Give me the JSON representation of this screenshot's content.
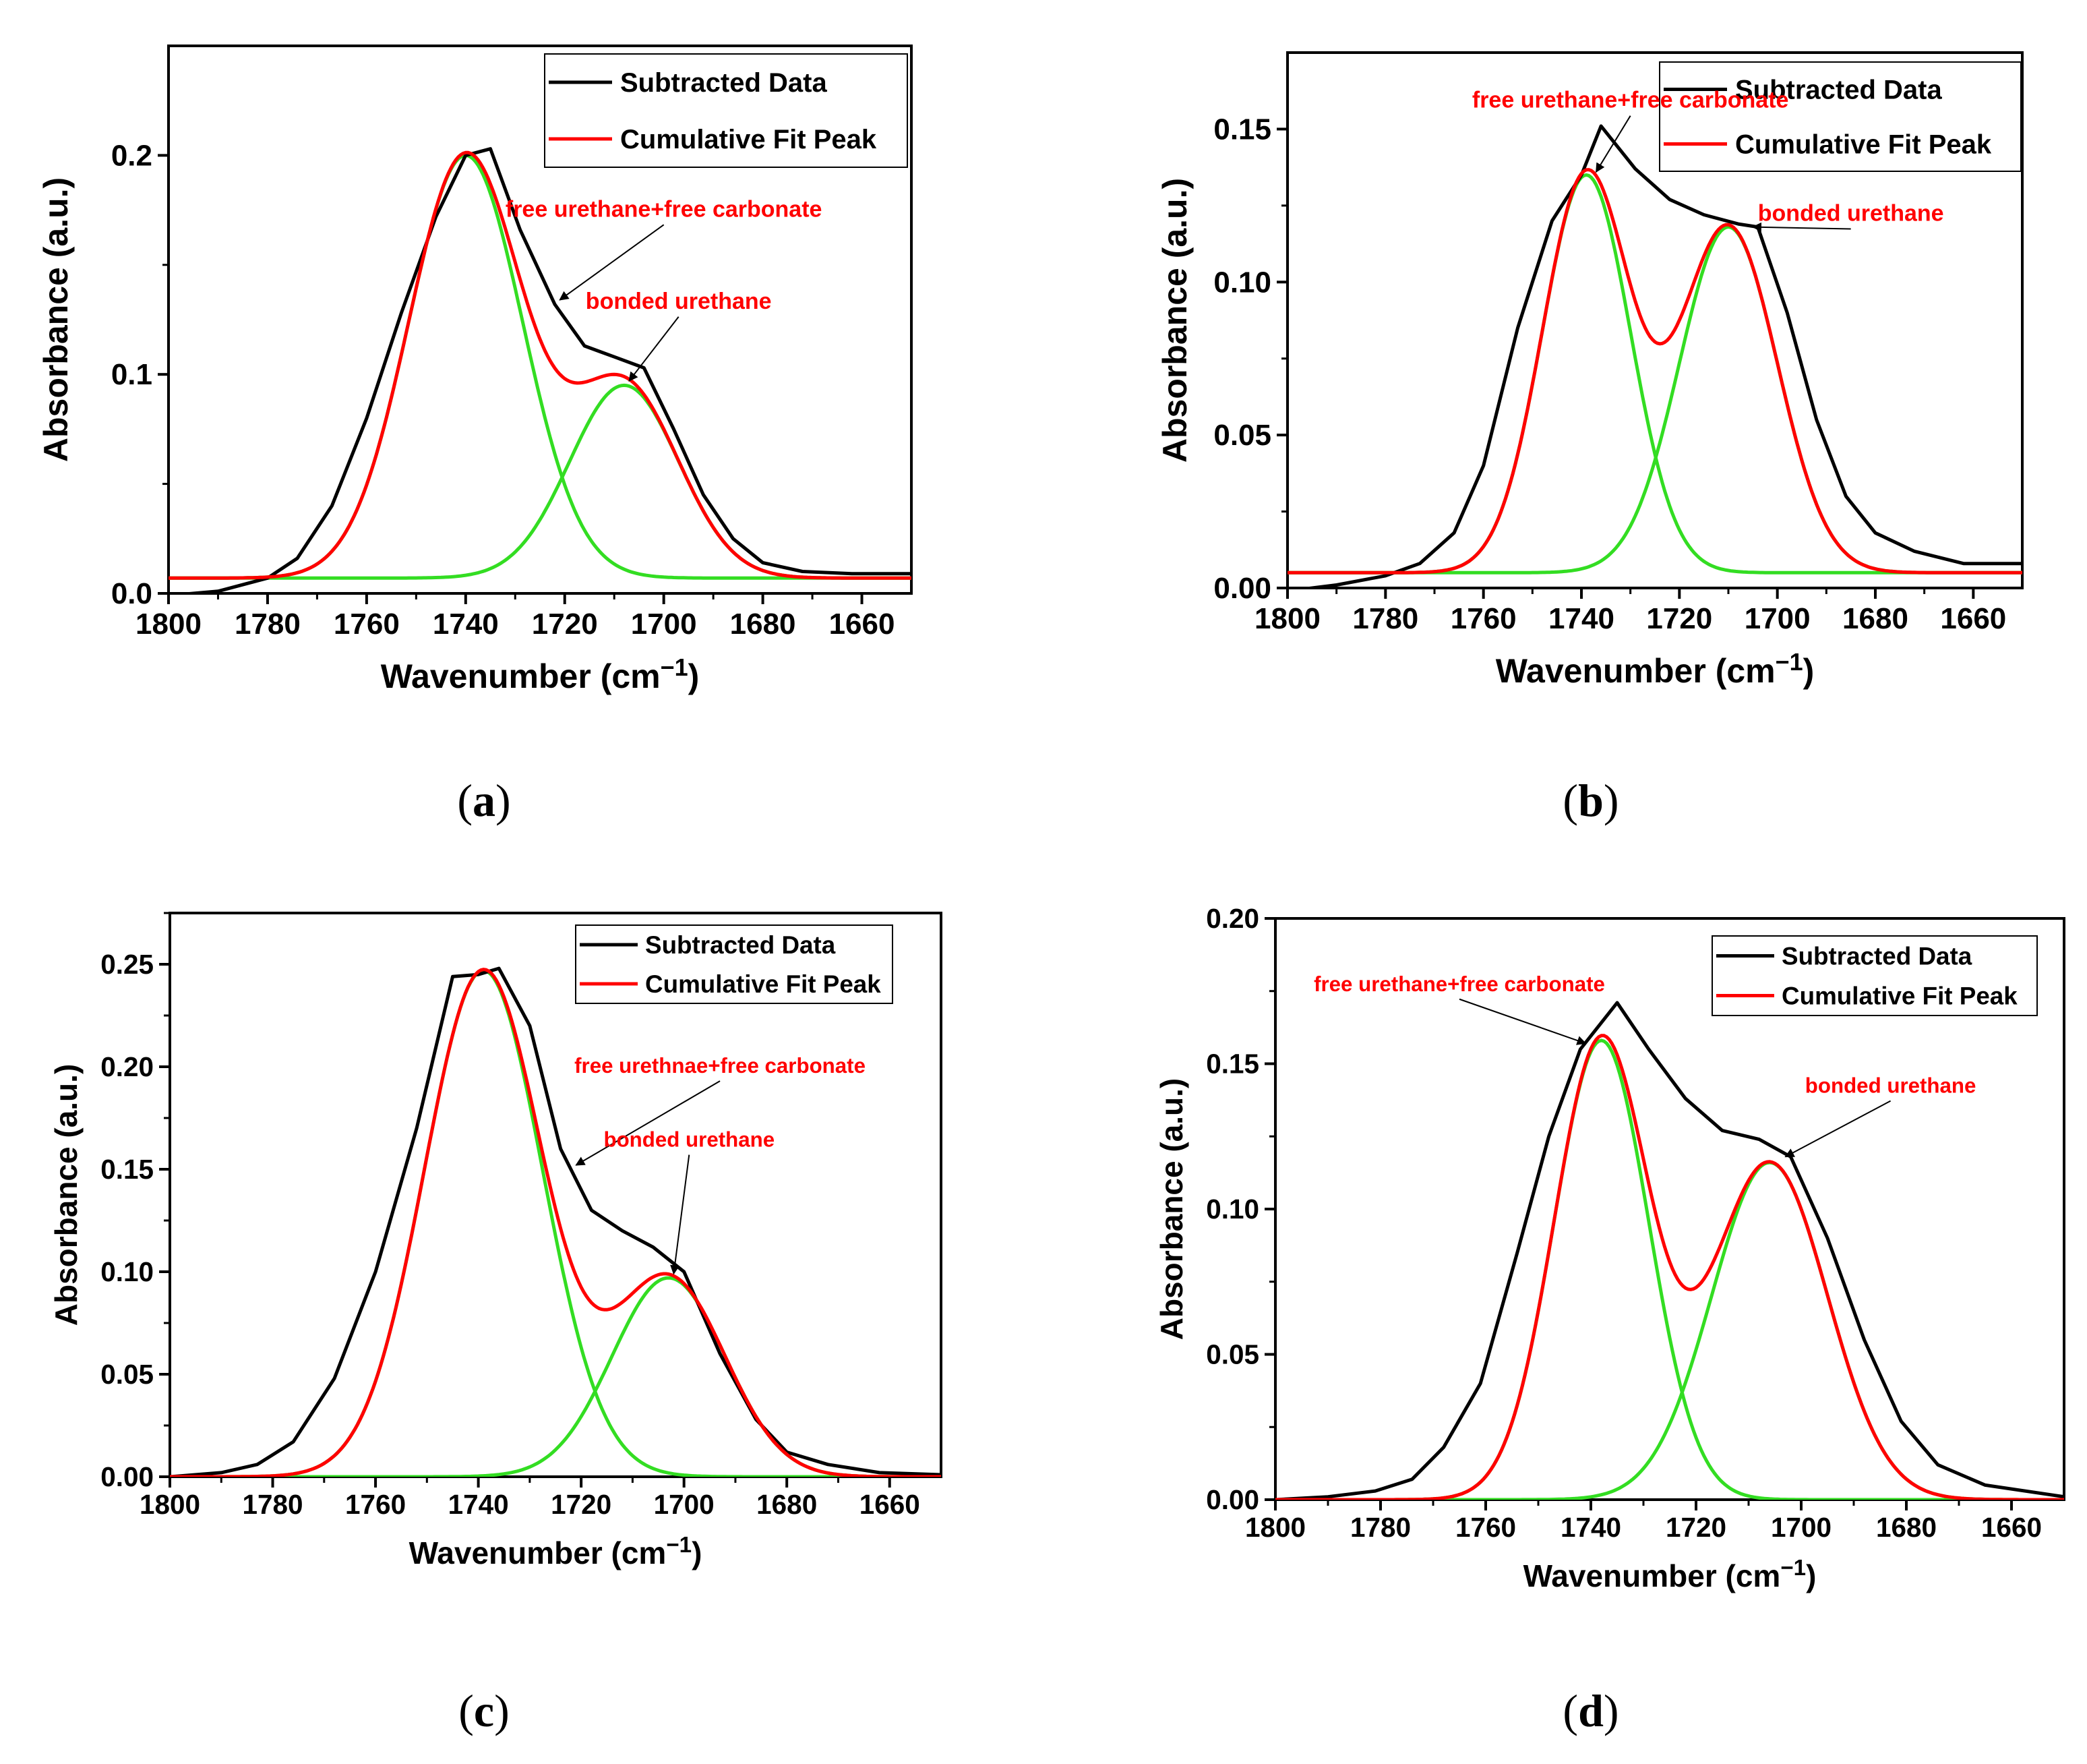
{
  "figure": {
    "x_label": "Wavenumber (cm",
    "x_label_sup": "−1",
    "x_label_close": ")",
    "y_label": "Absorbance (a.u.)",
    "legend": [
      "Subtracted Data",
      "Cumulative Fit Peak"
    ],
    "colors": {
      "data": "#000000",
      "fit": "#ff0000",
      "component": "#33dd22",
      "annotation": "#ff0000"
    }
  },
  "chart_data": [
    {
      "panel": "a",
      "type": "line",
      "xlim": [
        1800,
        1650
      ],
      "ylim": [
        0,
        0.25
      ],
      "xticks": [
        "1800",
        "1780",
        "1760",
        "1740",
        "1720",
        "1700",
        "1680",
        "1660"
      ],
      "yticks": [
        "0.0",
        "0.1",
        "0.2"
      ],
      "ytick_values": [
        0,
        0.1,
        0.2
      ],
      "baseline": 0.007,
      "peaks": [
        {
          "center": 1740,
          "height": 0.193,
          "sigma": 11.5
        },
        {
          "center": 1708,
          "height": 0.088,
          "sigma": 11
        }
      ],
      "data_points": [
        [
          1800,
          -0.001
        ],
        [
          1790,
          0.001
        ],
        [
          1780,
          0.007
        ],
        [
          1774,
          0.016
        ],
        [
          1767,
          0.04
        ],
        [
          1760,
          0.08
        ],
        [
          1753,
          0.128
        ],
        [
          1746,
          0.172
        ],
        [
          1740,
          0.2
        ],
        [
          1735,
          0.203
        ],
        [
          1729,
          0.166
        ],
        [
          1722,
          0.132
        ],
        [
          1716,
          0.113
        ],
        [
          1710,
          0.108
        ],
        [
          1704,
          0.103
        ],
        [
          1698,
          0.075
        ],
        [
          1692,
          0.045
        ],
        [
          1686,
          0.025
        ],
        [
          1680,
          0.014
        ],
        [
          1672,
          0.01
        ],
        [
          1662,
          0.009
        ],
        [
          1650,
          0.009
        ]
      ],
      "annotations": [
        {
          "text": "free urethane+free carbonate",
          "x": 1700,
          "y": 0.172,
          "tx": 1721,
          "ty": 0.134
        },
        {
          "text": "bonded urethane",
          "x": 1697,
          "y": 0.13,
          "tx": 1707,
          "ty": 0.097
        }
      ],
      "panel_label": "a"
    },
    {
      "panel": "b",
      "type": "line",
      "xlim": [
        1800,
        1650
      ],
      "ylim": [
        0,
        0.175
      ],
      "xticks": [
        "1800",
        "1780",
        "1760",
        "1740",
        "1720",
        "1700",
        "1680",
        "1660"
      ],
      "yticks": [
        "0.00",
        "0.05",
        "0.10",
        "0.15"
      ],
      "ytick_values": [
        0,
        0.05,
        0.1,
        0.15
      ],
      "baseline": 0.005,
      "peaks": [
        {
          "center": 1739,
          "height": 0.13,
          "sigma": 9
        },
        {
          "center": 1710,
          "height": 0.113,
          "sigma": 10
        }
      ],
      "data_points": [
        [
          1800,
          -0.001
        ],
        [
          1790,
          0.001
        ],
        [
          1780,
          0.004
        ],
        [
          1773,
          0.008
        ],
        [
          1766,
          0.018
        ],
        [
          1760,
          0.04
        ],
        [
          1753,
          0.085
        ],
        [
          1746,
          0.12
        ],
        [
          1740,
          0.135
        ],
        [
          1736,
          0.151
        ],
        [
          1729,
          0.137
        ],
        [
          1722,
          0.127
        ],
        [
          1715,
          0.122
        ],
        [
          1708,
          0.119
        ],
        [
          1704,
          0.118
        ],
        [
          1698,
          0.09
        ],
        [
          1692,
          0.055
        ],
        [
          1686,
          0.03
        ],
        [
          1680,
          0.018
        ],
        [
          1672,
          0.012
        ],
        [
          1662,
          0.008
        ],
        [
          1650,
          0.008
        ]
      ],
      "annotations": [
        {
          "text": "free urethane+free carbonate",
          "x": 1730,
          "y": 0.157,
          "tx": 1737,
          "ty": 0.136
        },
        {
          "text": "bonded urethane",
          "x": 1685,
          "y": 0.12,
          "tx": 1705,
          "ty": 0.118
        }
      ],
      "panel_label": "b"
    },
    {
      "panel": "c",
      "type": "line",
      "xlim": [
        1800,
        1650
      ],
      "ylim": [
        0,
        0.275
      ],
      "xticks": [
        "1800",
        "1780",
        "1760",
        "1740",
        "1720",
        "1700",
        "1680",
        "1660"
      ],
      "yticks": [
        "0.00",
        "0.05",
        "0.10",
        "0.15",
        "0.20",
        "0.25"
      ],
      "ytick_values": [
        0,
        0.05,
        0.1,
        0.15,
        0.2,
        0.25
      ],
      "baseline": 0.0,
      "peaks": [
        {
          "center": 1739,
          "height": 0.247,
          "sigma": 11.5
        },
        {
          "center": 1703,
          "height": 0.097,
          "sigma": 11
        }
      ],
      "data_points": [
        [
          1800,
          0.0
        ],
        [
          1790,
          0.002
        ],
        [
          1783,
          0.006
        ],
        [
          1776,
          0.017
        ],
        [
          1768,
          0.048
        ],
        [
          1760,
          0.1
        ],
        [
          1752,
          0.17
        ],
        [
          1745,
          0.244
        ],
        [
          1740,
          0.245
        ],
        [
          1736,
          0.248
        ],
        [
          1730,
          0.22
        ],
        [
          1724,
          0.16
        ],
        [
          1718,
          0.13
        ],
        [
          1712,
          0.12
        ],
        [
          1706,
          0.112
        ],
        [
          1700,
          0.1
        ],
        [
          1693,
          0.06
        ],
        [
          1686,
          0.028
        ],
        [
          1680,
          0.012
        ],
        [
          1672,
          0.006
        ],
        [
          1662,
          0.002
        ],
        [
          1650,
          0.001
        ]
      ],
      "annotations": [
        {
          "text": "free urethnae+free carbonate",
          "x": 1693,
          "y": 0.197,
          "tx": 1721,
          "ty": 0.152
        },
        {
          "text": "bonded urethane",
          "x": 1699,
          "y": 0.161,
          "tx": 1702,
          "ty": 0.099
        }
      ],
      "panel_label": "c"
    },
    {
      "panel": "d",
      "type": "line",
      "xlim": [
        1800,
        1650
      ],
      "ylim": [
        0,
        0.2
      ],
      "xticks": [
        "1800",
        "1780",
        "1760",
        "1740",
        "1720",
        "1700",
        "1680",
        "1660"
      ],
      "yticks": [
        "0.00",
        "0.05",
        "0.10",
        "0.15",
        "0.20"
      ],
      "ytick_values": [
        0,
        0.05,
        0.1,
        0.15,
        0.2
      ],
      "baseline": 0.0,
      "peaks": [
        {
          "center": 1738,
          "height": 0.158,
          "sigma": 9
        },
        {
          "center": 1706,
          "height": 0.116,
          "sigma": 11
        }
      ],
      "data_points": [
        [
          1800,
          0.0
        ],
        [
          1790,
          0.001
        ],
        [
          1781,
          0.003
        ],
        [
          1774,
          0.007
        ],
        [
          1768,
          0.018
        ],
        [
          1761,
          0.04
        ],
        [
          1754,
          0.085
        ],
        [
          1748,
          0.125
        ],
        [
          1742,
          0.155
        ],
        [
          1735,
          0.171
        ],
        [
          1729,
          0.155
        ],
        [
          1722,
          0.138
        ],
        [
          1715,
          0.127
        ],
        [
          1708,
          0.124
        ],
        [
          1702,
          0.118
        ],
        [
          1695,
          0.09
        ],
        [
          1688,
          0.055
        ],
        [
          1681,
          0.027
        ],
        [
          1674,
          0.012
        ],
        [
          1665,
          0.005
        ],
        [
          1650,
          0.001
        ]
      ],
      "annotations": [
        {
          "text": "free urethane+free carbonate",
          "x": 1765,
          "y": 0.175,
          "tx": 1741,
          "ty": 0.157
        },
        {
          "text": "bonded urethane",
          "x": 1683,
          "y": 0.14,
          "tx": 1703,
          "ty": 0.118
        }
      ],
      "panel_label": "d"
    }
  ]
}
